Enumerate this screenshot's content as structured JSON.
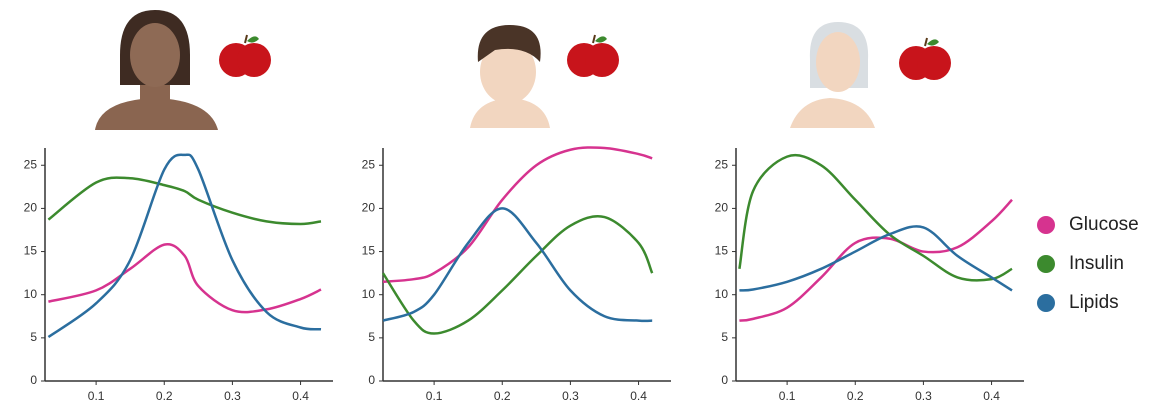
{
  "chart_data": [
    {
      "type": "line",
      "x": [
        0.03,
        0.1,
        0.15,
        0.2,
        0.23,
        0.25,
        0.3,
        0.35,
        0.4,
        0.43
      ],
      "series": [
        {
          "name": "Glucose",
          "color": "#d6338f",
          "values": [
            9.2,
            10.5,
            13,
            15.8,
            14.5,
            11,
            8.2,
            8.3,
            9.5,
            10.6
          ]
        },
        {
          "name": "Insulin",
          "color": "#3c8a2e",
          "values": [
            18.7,
            23,
            23.5,
            22.7,
            22,
            21,
            19.5,
            18.5,
            18.2,
            18.5
          ]
        },
        {
          "name": "Lipids",
          "color": "#2b6e9f",
          "values": [
            5.1,
            9,
            14,
            24.5,
            26.2,
            24.5,
            14,
            8,
            6.2,
            6
          ]
        }
      ],
      "xlim": [
        0.025,
        0.43
      ],
      "ylim": [
        0,
        27
      ],
      "xticks": [
        0.1,
        0.2,
        0.3,
        0.4
      ],
      "yticks": [
        0,
        5,
        10,
        15,
        20,
        25
      ]
    },
    {
      "type": "line",
      "x": [
        0.025,
        0.07,
        0.1,
        0.15,
        0.2,
        0.25,
        0.3,
        0.35,
        0.4,
        0.42
      ],
      "series": [
        {
          "name": "Glucose",
          "color": "#d6338f",
          "values": [
            11.5,
            11.8,
            12.5,
            15.5,
            21,
            25,
            26.8,
            27,
            26.3,
            25.8
          ]
        },
        {
          "name": "Insulin",
          "color": "#3c8a2e",
          "values": [
            12.5,
            7,
            5.5,
            7,
            10.5,
            14.5,
            18,
            19,
            16,
            12.5
          ]
        },
        {
          "name": "Lipids",
          "color": "#2b6e9f",
          "values": [
            7,
            8,
            10,
            16,
            20,
            16,
            10.5,
            7.5,
            7,
            7
          ]
        }
      ],
      "xlim": [
        0.025,
        0.43
      ],
      "ylim": [
        0,
        27
      ],
      "xticks": [
        0.1,
        0.2,
        0.3,
        0.4
      ],
      "yticks": [
        0,
        5,
        10,
        15,
        20,
        25
      ]
    },
    {
      "type": "line",
      "x": [
        0.03,
        0.05,
        0.1,
        0.15,
        0.2,
        0.25,
        0.3,
        0.35,
        0.4,
        0.43
      ],
      "series": [
        {
          "name": "Glucose",
          "color": "#d6338f",
          "values": [
            7,
            7.2,
            8.5,
            12,
            16,
            16.5,
            15,
            15.5,
            18.5,
            21
          ]
        },
        {
          "name": "Insulin",
          "color": "#3c8a2e",
          "values": [
            13,
            22,
            26,
            25,
            21,
            17,
            14.5,
            12,
            11.8,
            13
          ]
        },
        {
          "name": "Lipids",
          "color": "#2b6e9f",
          "values": [
            10.5,
            10.6,
            11.5,
            13,
            15,
            17,
            17.8,
            14.5,
            12,
            10.5
          ]
        }
      ],
      "xlim": [
        0.025,
        0.43
      ],
      "ylim": [
        0,
        27
      ],
      "xticks": [
        0.1,
        0.2,
        0.3,
        0.4
      ],
      "yticks": [
        0,
        5,
        10,
        15,
        20,
        25
      ]
    }
  ]
}
